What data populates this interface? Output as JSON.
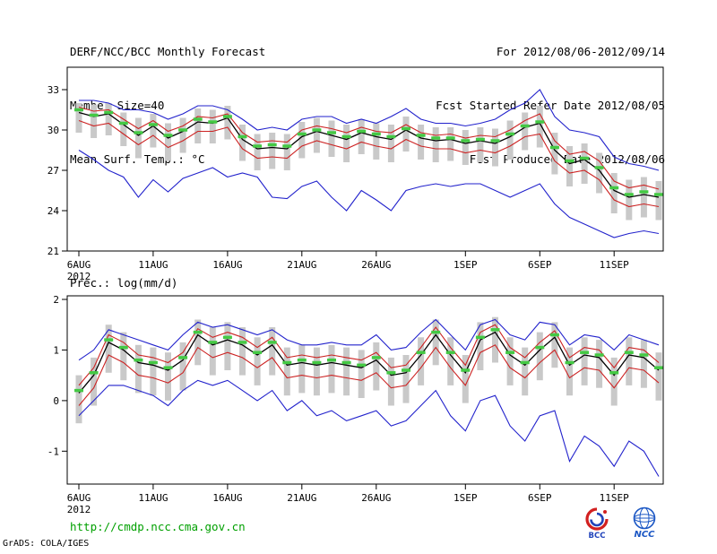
{
  "header": {
    "title": "DERF/NCC/BCC Monthly Forecast",
    "member_size": "Member Size=40",
    "variable_label": "Mean Surf. Temp.: °C",
    "for_range": "For 2012/08/06-2012/09/14",
    "refer_date": "Fcst Started Refer Date 2012/08/05",
    "produced_date": "Fcst Produced Date 2012/08/06"
  },
  "footer": {
    "url": "http://cmdp.ncc.cma.gov.cn",
    "credit": "GrADS: COLA/IGES",
    "logos": [
      "BCC",
      "NCC"
    ]
  },
  "colors": {
    "envelope_blue": "#2222cc",
    "quartile_red": "#cc2222",
    "mean_black": "#000000",
    "median_green": "#44c944",
    "bar_gray": "#c9c9c9",
    "url_green": "#00a000"
  },
  "chart_data": [
    {
      "type": "line",
      "title": "Mean Surf. Temp.: °C",
      "n_days": 40,
      "x_year_label": "2012",
      "x_ticks": [
        {
          "day": 0,
          "label": "6AUG"
        },
        {
          "day": 5,
          "label": "11AUG"
        },
        {
          "day": 10,
          "label": "16AUG"
        },
        {
          "day": 15,
          "label": "21AUG"
        },
        {
          "day": 20,
          "label": "26AUG"
        },
        {
          "day": 26,
          "label": "1SEP"
        },
        {
          "day": 31,
          "label": "6SEP"
        },
        {
          "day": 36,
          "label": "11SEP"
        }
      ],
      "ylim": [
        21,
        34.67
      ],
      "yticks": [
        21,
        24,
        27,
        30,
        33
      ],
      "bar_color": "#c9c9c9",
      "bars": {
        "hi": [
          32.0,
          31.9,
          32.0,
          31.3,
          30.9,
          31.2,
          30.5,
          30.9,
          31.6,
          31.5,
          31.8,
          30.4,
          29.7,
          29.8,
          29.7,
          30.6,
          30.9,
          30.7,
          30.4,
          30.8,
          30.5,
          30.4,
          31.0,
          30.4,
          30.2,
          30.2,
          30.0,
          30.2,
          30.1,
          30.7,
          31.3,
          31.8,
          29.8,
          28.8,
          29.0,
          28.3,
          26.8,
          26.3,
          26.5,
          26.2
        ],
        "lo": [
          29.8,
          29.4,
          29.6,
          28.8,
          27.9,
          28.7,
          27.7,
          28.3,
          29.0,
          29.0,
          29.3,
          27.7,
          27.0,
          27.1,
          27.0,
          27.9,
          28.3,
          28.0,
          27.6,
          28.2,
          27.8,
          27.6,
          28.4,
          27.8,
          27.6,
          27.7,
          27.4,
          27.6,
          27.3,
          27.8,
          28.5,
          28.7,
          26.7,
          25.8,
          26.0,
          25.3,
          23.8,
          23.3,
          23.5,
          23.3
        ]
      },
      "series": [
        {
          "name": "ensemble-max",
          "color": "#2222cc",
          "width": 1.1,
          "style": "line",
          "values": [
            32.2,
            32.2,
            32.0,
            31.5,
            31.5,
            31.3,
            30.8,
            31.2,
            31.8,
            31.8,
            31.5,
            30.8,
            30.0,
            30.2,
            30.0,
            30.8,
            31.0,
            31.0,
            30.5,
            30.8,
            30.5,
            31.0,
            31.6,
            30.8,
            30.5,
            30.5,
            30.3,
            30.5,
            30.8,
            31.5,
            32.0,
            33.0,
            31.0,
            30.0,
            29.8,
            29.5,
            28.0,
            27.5,
            27.3,
            27.0
          ]
        },
        {
          "name": "ensemble-min",
          "color": "#2222cc",
          "width": 1.1,
          "style": "line",
          "values": [
            28.5,
            27.8,
            27.0,
            26.5,
            25.0,
            26.3,
            25.4,
            26.4,
            26.8,
            27.2,
            26.5,
            26.8,
            26.5,
            25.0,
            24.9,
            25.8,
            26.2,
            25.0,
            24.0,
            25.5,
            24.8,
            24.0,
            25.5,
            25.8,
            26.0,
            25.8,
            26.0,
            26.0,
            25.5,
            25.0,
            25.5,
            26.0,
            24.5,
            23.5,
            23.0,
            22.5,
            22.0,
            22.3,
            22.5,
            22.3
          ]
        },
        {
          "name": "upper-quartile",
          "color": "#cc2222",
          "width": 1.1,
          "style": "line",
          "values": [
            31.7,
            31.4,
            31.5,
            30.8,
            30.1,
            30.7,
            29.9,
            30.3,
            31.0,
            30.9,
            31.2,
            29.8,
            29.1,
            29.2,
            29.1,
            30.0,
            30.3,
            30.1,
            29.8,
            30.2,
            29.9,
            29.8,
            30.4,
            29.8,
            29.6,
            29.7,
            29.4,
            29.6,
            29.5,
            30.0,
            30.7,
            31.2,
            29.2,
            28.2,
            28.4,
            27.7,
            26.2,
            25.7,
            25.9,
            25.6
          ]
        },
        {
          "name": "lower-quartile",
          "color": "#cc2222",
          "width": 1.1,
          "style": "line",
          "values": [
            30.7,
            30.3,
            30.5,
            29.7,
            28.9,
            29.6,
            28.7,
            29.2,
            29.9,
            29.9,
            30.2,
            28.6,
            27.9,
            28.0,
            27.9,
            28.8,
            29.2,
            28.9,
            28.6,
            29.1,
            28.8,
            28.6,
            29.3,
            28.8,
            28.6,
            28.6,
            28.3,
            28.5,
            28.3,
            28.8,
            29.5,
            29.7,
            27.7,
            26.8,
            27.0,
            26.3,
            24.8,
            24.3,
            24.5,
            24.3
          ]
        },
        {
          "name": "ensemble-mean",
          "color": "#000000",
          "width": 1.3,
          "style": "line",
          "values": [
            31.3,
            31.0,
            31.2,
            30.4,
            29.6,
            30.3,
            29.4,
            29.9,
            30.6,
            30.5,
            30.9,
            29.3,
            28.6,
            28.7,
            28.6,
            29.5,
            29.9,
            29.6,
            29.3,
            29.8,
            29.5,
            29.3,
            30.0,
            29.4,
            29.2,
            29.3,
            29.0,
            29.2,
            29.0,
            29.5,
            30.2,
            30.5,
            28.5,
            27.5,
            27.8,
            27.0,
            25.5,
            25.0,
            25.2,
            25.0
          ]
        },
        {
          "name": "ensemble-median",
          "color": "#44c944",
          "width": 3.5,
          "style": "dash-marks",
          "values": [
            31.5,
            31.1,
            31.3,
            30.5,
            29.8,
            30.4,
            29.6,
            30.0,
            30.8,
            30.6,
            31.0,
            29.5,
            28.8,
            28.9,
            28.8,
            29.7,
            30.0,
            29.8,
            29.5,
            29.9,
            29.7,
            29.5,
            30.1,
            29.6,
            29.4,
            29.4,
            29.2,
            29.3,
            29.2,
            29.7,
            30.3,
            30.6,
            28.7,
            27.7,
            27.9,
            27.2,
            25.7,
            25.2,
            25.4,
            25.2
          ]
        }
      ]
    },
    {
      "type": "line",
      "title": "Prec.: log(mm/d)",
      "n_days": 40,
      "x_year_label": "2012",
      "x_ticks": [
        {
          "day": 0,
          "label": "6AUG"
        },
        {
          "day": 5,
          "label": "11AUG"
        },
        {
          "day": 10,
          "label": "16AUG"
        },
        {
          "day": 15,
          "label": "21AUG"
        },
        {
          "day": 20,
          "label": "26AUG"
        },
        {
          "day": 26,
          "label": "1SEP"
        },
        {
          "day": 31,
          "label": "6SEP"
        },
        {
          "day": 36,
          "label": "11SEP"
        }
      ],
      "ylim": [
        -1.65,
        2.07
      ],
      "yticks": [
        -1,
        0,
        1,
        2
      ],
      "bar_color": "#c9c9c9",
      "bars": {
        "hi": [
          0.5,
          0.85,
          1.5,
          1.35,
          1.1,
          1.05,
          0.95,
          1.15,
          1.6,
          1.45,
          1.55,
          1.45,
          1.25,
          1.45,
          1.05,
          1.1,
          1.05,
          1.1,
          1.05,
          1.0,
          1.15,
          0.85,
          0.9,
          1.25,
          1.6,
          1.25,
          0.9,
          1.55,
          1.65,
          1.25,
          1.05,
          1.35,
          1.55,
          1.05,
          1.25,
          1.2,
          0.85,
          1.25,
          1.2,
          0.95
        ],
        "lo": [
          -0.45,
          -0.1,
          0.55,
          0.4,
          0.15,
          0.1,
          0.0,
          0.2,
          0.7,
          0.5,
          0.6,
          0.5,
          0.3,
          0.5,
          0.1,
          0.15,
          0.1,
          0.15,
          0.1,
          0.05,
          0.2,
          -0.1,
          -0.05,
          0.3,
          0.7,
          0.3,
          -0.05,
          0.6,
          0.75,
          0.3,
          0.1,
          0.4,
          0.65,
          0.1,
          0.3,
          0.25,
          -0.1,
          0.3,
          0.25,
          0.0
        ]
      },
      "series": [
        {
          "name": "ensemble-max",
          "color": "#2222cc",
          "width": 1.1,
          "style": "line",
          "values": [
            0.8,
            1.0,
            1.4,
            1.3,
            1.2,
            1.1,
            1.0,
            1.3,
            1.55,
            1.45,
            1.5,
            1.4,
            1.3,
            1.4,
            1.2,
            1.1,
            1.1,
            1.15,
            1.1,
            1.1,
            1.3,
            1.0,
            1.05,
            1.35,
            1.6,
            1.3,
            1.0,
            1.5,
            1.6,
            1.3,
            1.2,
            1.55,
            1.5,
            1.1,
            1.3,
            1.25,
            1.0,
            1.3,
            1.2,
            1.1
          ]
        },
        {
          "name": "ensemble-min",
          "color": "#2222cc",
          "width": 1.1,
          "style": "line",
          "values": [
            -0.3,
            0.0,
            0.3,
            0.3,
            0.2,
            0.1,
            -0.1,
            0.2,
            0.4,
            0.3,
            0.4,
            0.2,
            0.0,
            0.2,
            -0.2,
            0.0,
            -0.3,
            -0.2,
            -0.4,
            -0.3,
            -0.2,
            -0.5,
            -0.4,
            -0.1,
            0.2,
            -0.3,
            -0.6,
            0.0,
            0.1,
            -0.5,
            -0.8,
            -0.3,
            -0.2,
            -1.2,
            -0.7,
            -0.9,
            -1.3,
            -0.8,
            -1.0,
            -1.5
          ]
        },
        {
          "name": "upper-quartile",
          "color": "#cc2222",
          "width": 1.1,
          "style": "line",
          "values": [
            0.3,
            0.65,
            1.3,
            1.15,
            0.9,
            0.85,
            0.75,
            0.95,
            1.42,
            1.25,
            1.35,
            1.25,
            1.05,
            1.25,
            0.85,
            0.9,
            0.85,
            0.9,
            0.85,
            0.8,
            0.95,
            0.65,
            0.7,
            1.05,
            1.45,
            1.05,
            0.7,
            1.35,
            1.5,
            1.05,
            0.85,
            1.15,
            1.38,
            0.85,
            1.05,
            1.0,
            0.65,
            1.05,
            1.0,
            0.75
          ]
        },
        {
          "name": "lower-quartile",
          "color": "#cc2222",
          "width": 1.1,
          "style": "line",
          "values": [
            -0.1,
            0.25,
            0.9,
            0.75,
            0.5,
            0.45,
            0.35,
            0.55,
            1.05,
            0.85,
            0.95,
            0.85,
            0.65,
            0.85,
            0.45,
            0.5,
            0.45,
            0.5,
            0.45,
            0.4,
            0.55,
            0.25,
            0.3,
            0.65,
            1.05,
            0.65,
            0.3,
            0.95,
            1.1,
            0.65,
            0.45,
            0.75,
            1.0,
            0.45,
            0.65,
            0.6,
            0.25,
            0.65,
            0.6,
            0.35
          ]
        },
        {
          "name": "ensemble-mean",
          "color": "#000000",
          "width": 1.3,
          "style": "line",
          "values": [
            0.15,
            0.5,
            1.15,
            1.0,
            0.75,
            0.7,
            0.6,
            0.8,
            1.3,
            1.1,
            1.2,
            1.1,
            0.9,
            1.1,
            0.7,
            0.75,
            0.7,
            0.75,
            0.7,
            0.65,
            0.8,
            0.5,
            0.55,
            0.9,
            1.3,
            0.9,
            0.55,
            1.2,
            1.35,
            0.9,
            0.7,
            1.0,
            1.25,
            0.7,
            0.9,
            0.85,
            0.5,
            0.9,
            0.85,
            0.6
          ]
        },
        {
          "name": "ensemble-median",
          "color": "#44c944",
          "width": 3.5,
          "style": "dash-marks",
          "values": [
            0.2,
            0.55,
            1.2,
            1.05,
            0.8,
            0.75,
            0.65,
            0.85,
            1.35,
            1.15,
            1.25,
            1.15,
            0.95,
            1.15,
            0.75,
            0.8,
            0.75,
            0.8,
            0.75,
            0.7,
            0.85,
            0.55,
            0.6,
            0.95,
            1.35,
            0.95,
            0.6,
            1.25,
            1.4,
            0.95,
            0.75,
            1.05,
            1.3,
            0.75,
            0.95,
            0.9,
            0.55,
            0.95,
            0.9,
            0.65
          ]
        }
      ]
    }
  ]
}
